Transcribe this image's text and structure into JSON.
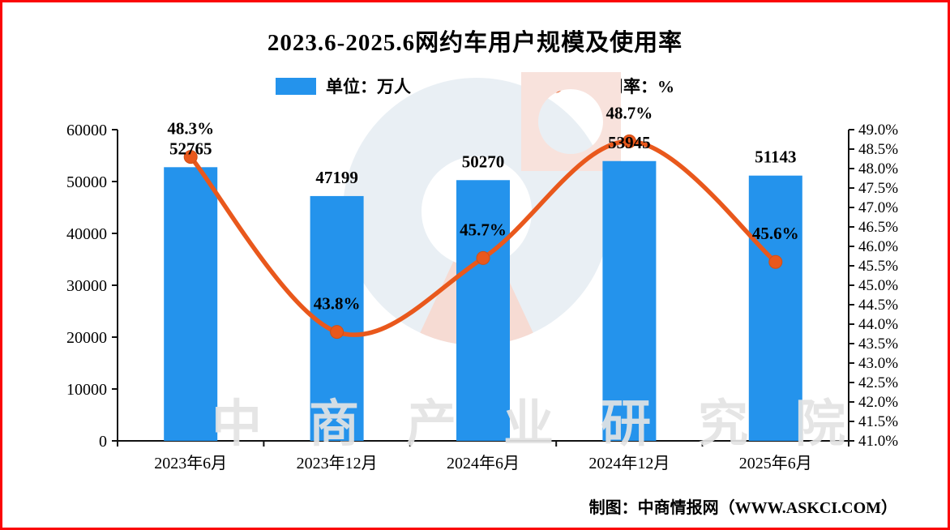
{
  "frame": {
    "border_color": "#FB0607",
    "background": "#FFFFFF"
  },
  "header": {
    "title": "2023.6-2025.6网约车用户规模及使用率"
  },
  "legend": [
    {
      "label": "单位：万人",
      "marker": "bar-swatch",
      "color": "#2493EC"
    },
    {
      "label": "使用率：%",
      "marker": "line-with-dot",
      "color": "#E9581C"
    }
  ],
  "watermark": {
    "logo": "zhongshang-logo",
    "text": "中商产业研究院"
  },
  "footer": {
    "credit": "制图：中商情报网（WWW.ASKCI.COM）"
  },
  "chart_data": {
    "type": "bar",
    "subtype": "bar-line-combo",
    "title": "2023.6-2025.6网约车用户规模及使用率",
    "categories": [
      "2023年6月",
      "2023年12月",
      "2024年6月",
      "2024年12月",
      "2025年6月"
    ],
    "series": [
      {
        "name": "单位：万人",
        "type": "bar",
        "axis": "left",
        "color": "#2493EC",
        "values": [
          52765,
          47199,
          50270,
          53945,
          51143
        ],
        "value_labels": [
          "52765",
          "47199",
          "50270",
          "53945",
          "51143"
        ]
      },
      {
        "name": "使用率：%",
        "type": "line",
        "axis": "right",
        "color": "#E9581C",
        "values": [
          48.3,
          43.8,
          45.7,
          48.7,
          45.6
        ],
        "point_labels": [
          "48.3%",
          "43.8%",
          "45.7%",
          "48.7%",
          "45.6%"
        ]
      }
    ],
    "left_axis": {
      "min": 0,
      "max": 60000,
      "step": 10000,
      "tick_labels": [
        "0",
        "10000",
        "20000",
        "30000",
        "40000",
        "50000",
        "60000"
      ]
    },
    "right_axis": {
      "min": 41.0,
      "max": 49.0,
      "step": 0.5,
      "tick_labels": [
        "41.0%",
        "41.5%",
        "42.0%",
        "42.5%",
        "43.0%",
        "43.5%",
        "44.0%",
        "44.5%",
        "45.0%",
        "45.5%",
        "46.0%",
        "46.5%",
        "47.0%",
        "47.5%",
        "48.0%",
        "48.5%",
        "49.0%"
      ]
    },
    "grid": false,
    "legend_position": "top-center"
  }
}
